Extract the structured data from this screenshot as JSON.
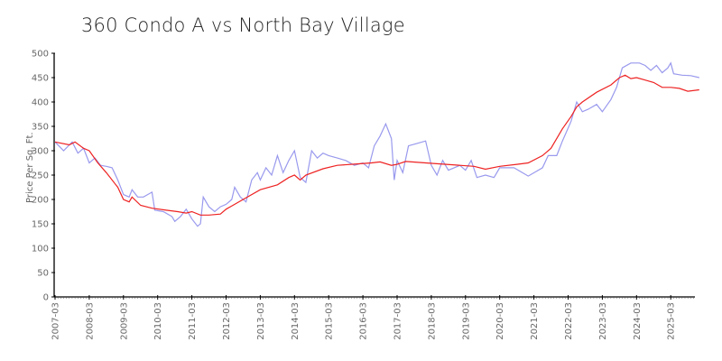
{
  "chart_data": {
    "type": "line",
    "title": "360 Condo A vs North Bay Village",
    "xlabel": "",
    "ylabel": "Price Per Sq. Ft.",
    "ylim": [
      0,
      500
    ],
    "yticks": [
      0,
      50,
      100,
      150,
      200,
      250,
      300,
      350,
      400,
      450,
      500
    ],
    "xticks": [
      "2007-03",
      "2008-03",
      "2009-03",
      "2010-03",
      "2011-03",
      "2012-03",
      "2013-03",
      "2014-03",
      "2015-03",
      "2016-03",
      "2017-03",
      "2018-03",
      "2019-03",
      "2020-03",
      "2021-03",
      "2022-03",
      "2023-03",
      "2024-03",
      "2025-03"
    ],
    "grid": false,
    "legend": null,
    "series": [
      {
        "name": "360 Condo A",
        "color": "#9999ee",
        "points": [
          [
            "2007-03",
            318
          ],
          [
            "2007-06",
            300
          ],
          [
            "2007-09",
            318
          ],
          [
            "2007-11",
            295
          ],
          [
            "2008-01",
            305
          ],
          [
            "2008-03",
            275
          ],
          [
            "2008-05",
            285
          ],
          [
            "2008-07",
            270
          ],
          [
            "2008-09",
            268
          ],
          [
            "2008-11",
            265
          ],
          [
            "2009-01",
            240
          ],
          [
            "2009-03",
            210
          ],
          [
            "2009-05",
            205
          ],
          [
            "2009-06",
            220
          ],
          [
            "2009-08",
            205
          ],
          [
            "2009-10",
            205
          ],
          [
            "2010-01",
            215
          ],
          [
            "2010-02",
            178
          ],
          [
            "2010-05",
            175
          ],
          [
            "2010-08",
            165
          ],
          [
            "2010-09",
            155
          ],
          [
            "2010-11",
            165
          ],
          [
            "2011-01",
            180
          ],
          [
            "2011-03",
            160
          ],
          [
            "2011-05",
            145
          ],
          [
            "2011-06",
            150
          ],
          [
            "2011-07",
            205
          ],
          [
            "2011-09",
            185
          ],
          [
            "2011-11",
            175
          ],
          [
            "2012-01",
            185
          ],
          [
            "2012-03",
            190
          ],
          [
            "2012-05",
            200
          ],
          [
            "2012-06",
            225
          ],
          [
            "2012-08",
            205
          ],
          [
            "2012-10",
            195
          ],
          [
            "2012-12",
            240
          ],
          [
            "2013-02",
            255
          ],
          [
            "2013-03",
            240
          ],
          [
            "2013-05",
            265
          ],
          [
            "2013-07",
            250
          ],
          [
            "2013-09",
            290
          ],
          [
            "2013-11",
            255
          ],
          [
            "2014-01",
            280
          ],
          [
            "2014-03",
            300
          ],
          [
            "2014-05",
            245
          ],
          [
            "2014-07",
            235
          ],
          [
            "2014-09",
            300
          ],
          [
            "2014-11",
            285
          ],
          [
            "2015-01",
            295
          ],
          [
            "2015-03",
            290
          ],
          [
            "2015-06",
            285
          ],
          [
            "2015-09",
            280
          ],
          [
            "2015-12",
            270
          ],
          [
            "2016-03",
            275
          ],
          [
            "2016-05",
            265
          ],
          [
            "2016-07",
            310
          ],
          [
            "2016-09",
            330
          ],
          [
            "2016-11",
            355
          ],
          [
            "2017-01",
            325
          ],
          [
            "2017-02",
            240
          ],
          [
            "2017-03",
            280
          ],
          [
            "2017-05",
            255
          ],
          [
            "2017-07",
            310
          ],
          [
            "2017-10",
            315
          ],
          [
            "2018-01",
            320
          ],
          [
            "2018-03",
            270
          ],
          [
            "2018-05",
            250
          ],
          [
            "2018-07",
            280
          ],
          [
            "2018-09",
            260
          ],
          [
            "2018-11",
            265
          ],
          [
            "2019-01",
            270
          ],
          [
            "2019-03",
            260
          ],
          [
            "2019-05",
            280
          ],
          [
            "2019-07",
            245
          ],
          [
            "2019-10",
            250
          ],
          [
            "2020-01",
            245
          ],
          [
            "2020-03",
            265
          ],
          [
            "2020-08",
            265
          ],
          [
            "2021-01",
            248
          ],
          [
            "2021-06",
            265
          ],
          [
            "2021-08",
            290
          ],
          [
            "2021-11",
            290
          ],
          [
            "2022-01",
            320
          ],
          [
            "2022-04",
            360
          ],
          [
            "2022-06",
            400
          ],
          [
            "2022-08",
            380
          ],
          [
            "2022-10",
            385
          ],
          [
            "2023-01",
            395
          ],
          [
            "2023-03",
            380
          ],
          [
            "2023-06",
            405
          ],
          [
            "2023-08",
            430
          ],
          [
            "2023-10",
            470
          ],
          [
            "2024-01",
            480
          ],
          [
            "2024-04",
            480
          ],
          [
            "2024-06",
            475
          ],
          [
            "2024-08",
            465
          ],
          [
            "2024-10",
            475
          ],
          [
            "2024-12",
            460
          ],
          [
            "2025-02",
            470
          ],
          [
            "2025-03",
            480
          ],
          [
            "2025-04",
            458
          ],
          [
            "2025-07",
            455
          ],
          [
            "2025-10",
            454
          ],
          [
            "2026-01",
            450
          ]
        ]
      },
      {
        "name": "North Bay Village",
        "color": "#ee2222",
        "points": [
          [
            "2007-03",
            318
          ],
          [
            "2007-08",
            312
          ],
          [
            "2007-10",
            318
          ],
          [
            "2008-01",
            305
          ],
          [
            "2008-03",
            300
          ],
          [
            "2008-06",
            275
          ],
          [
            "2008-09",
            255
          ],
          [
            "2009-01",
            225
          ],
          [
            "2009-03",
            200
          ],
          [
            "2009-05",
            195
          ],
          [
            "2009-06",
            205
          ],
          [
            "2009-09",
            188
          ],
          [
            "2010-01",
            182
          ],
          [
            "2010-06",
            178
          ],
          [
            "2010-10",
            175
          ],
          [
            "2011-01",
            172
          ],
          [
            "2011-03",
            175
          ],
          [
            "2011-06",
            168
          ],
          [
            "2011-09",
            168
          ],
          [
            "2012-01",
            170
          ],
          [
            "2012-03",
            180
          ],
          [
            "2012-09",
            200
          ],
          [
            "2013-03",
            220
          ],
          [
            "2013-09",
            230
          ],
          [
            "2014-01",
            245
          ],
          [
            "2014-03",
            250
          ],
          [
            "2014-05",
            240
          ],
          [
            "2014-07",
            250
          ],
          [
            "2015-01",
            263
          ],
          [
            "2015-06",
            270
          ],
          [
            "2016-01",
            273
          ],
          [
            "2016-06",
            275
          ],
          [
            "2016-09",
            277
          ],
          [
            "2017-01",
            270
          ],
          [
            "2017-03",
            272
          ],
          [
            "2017-06",
            278
          ],
          [
            "2018-01",
            275
          ],
          [
            "2018-06",
            273
          ],
          [
            "2019-01",
            270
          ],
          [
            "2019-06",
            268
          ],
          [
            "2019-10",
            262
          ],
          [
            "2020-03",
            268
          ],
          [
            "2020-09",
            272
          ],
          [
            "2021-01",
            275
          ],
          [
            "2021-06",
            290
          ],
          [
            "2021-09",
            305
          ],
          [
            "2022-01",
            345
          ],
          [
            "2022-04",
            370
          ],
          [
            "2022-06",
            390
          ],
          [
            "2022-08",
            400
          ],
          [
            "2023-01",
            420
          ],
          [
            "2023-06",
            435
          ],
          [
            "2023-09",
            450
          ],
          [
            "2023-11",
            455
          ],
          [
            "2024-01",
            448
          ],
          [
            "2024-03",
            450
          ],
          [
            "2024-06",
            445
          ],
          [
            "2024-09",
            440
          ],
          [
            "2024-12",
            430
          ],
          [
            "2025-03",
            430
          ],
          [
            "2025-06",
            428
          ],
          [
            "2025-09",
            422
          ],
          [
            "2026-01",
            425
          ]
        ]
      }
    ]
  }
}
